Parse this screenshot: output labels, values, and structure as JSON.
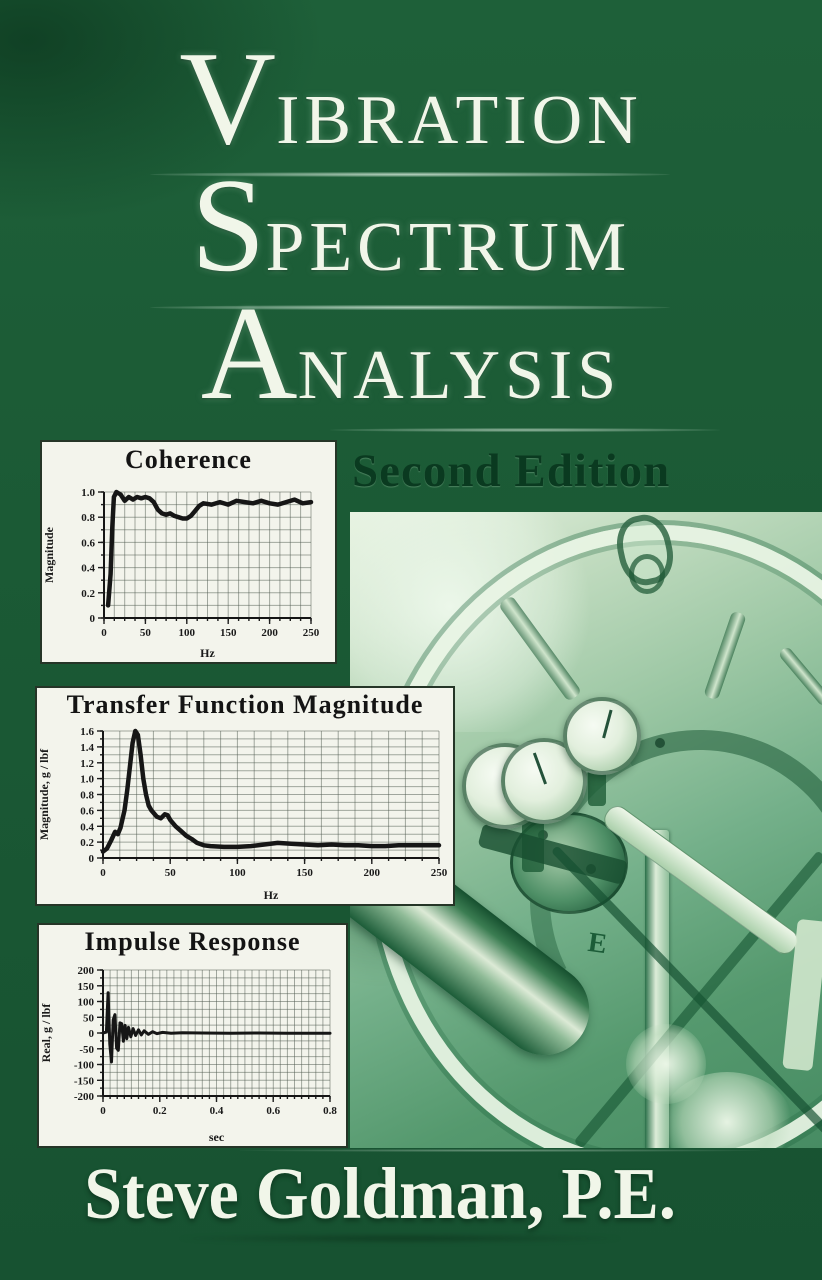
{
  "cover": {
    "title_lines": [
      {
        "initial": "V",
        "rest": "ibration"
      },
      {
        "initial": "S",
        "rest": "pectrum"
      },
      {
        "initial": "A",
        "rest": "nalysis"
      }
    ],
    "edition": "Second Edition",
    "author": "Steve Goldman, P.E.",
    "photo": {
      "stencil_label": "E"
    },
    "colors": {
      "background": "#1b5a35",
      "title_text": "#f1f6e9",
      "edition_text": "#0a3a20",
      "panel_bg": "#f3f4ec",
      "panel_border": "#253527",
      "chart_ink": "#171717",
      "grid": "#4d574d",
      "photo_light": "#e8f3e2",
      "photo_dark": "#478c63"
    }
  },
  "chart_data": [
    {
      "type": "line",
      "title": "Coherence",
      "xlabel": "Hz",
      "ylabel": "Magnitude",
      "xlim": [
        0,
        250
      ],
      "ylim": [
        0,
        1
      ],
      "xtick_vals": [
        0,
        50,
        100,
        150,
        200,
        250
      ],
      "xtick_labels": [
        "0",
        "50",
        "100",
        "150",
        "200",
        "250"
      ],
      "ytick_vals": [
        0,
        0.2,
        0.4,
        0.6,
        0.8,
        1.0
      ],
      "ytick_labels": [
        "0",
        "0.2",
        "0.4",
        "0.6",
        "0.8",
        "1.0"
      ],
      "grid_x_step": 12.5,
      "grid_y_step": 0.1,
      "line_color": "#161616",
      "line_width": 4.5,
      "points": [
        [
          5,
          0.1
        ],
        [
          8,
          0.35
        ],
        [
          10,
          0.72
        ],
        [
          12,
          0.96
        ],
        [
          15,
          1.0
        ],
        [
          20,
          0.98
        ],
        [
          25,
          0.93
        ],
        [
          30,
          0.96
        ],
        [
          35,
          0.94
        ],
        [
          40,
          0.96
        ],
        [
          45,
          0.95
        ],
        [
          50,
          0.96
        ],
        [
          55,
          0.95
        ],
        [
          60,
          0.92
        ],
        [
          65,
          0.86
        ],
        [
          70,
          0.83
        ],
        [
          75,
          0.82
        ],
        [
          80,
          0.83
        ],
        [
          85,
          0.81
        ],
        [
          90,
          0.8
        ],
        [
          95,
          0.79
        ],
        [
          100,
          0.79
        ],
        [
          105,
          0.81
        ],
        [
          110,
          0.85
        ],
        [
          115,
          0.89
        ],
        [
          120,
          0.91
        ],
        [
          130,
          0.9
        ],
        [
          140,
          0.92
        ],
        [
          150,
          0.9
        ],
        [
          160,
          0.93
        ],
        [
          170,
          0.92
        ],
        [
          180,
          0.91
        ],
        [
          190,
          0.93
        ],
        [
          200,
          0.91
        ],
        [
          210,
          0.9
        ],
        [
          220,
          0.92
        ],
        [
          230,
          0.94
        ],
        [
          240,
          0.91
        ],
        [
          250,
          0.92
        ]
      ],
      "layout": {
        "margins": {
          "l": 62,
          "r": 24,
          "t": 12,
          "b": 44
        },
        "grid": true,
        "legend": false
      }
    },
    {
      "type": "line",
      "title": "Transfer Function Magnitude",
      "xlabel": "Hz",
      "ylabel": "Magnitude, g / lbf",
      "xlim": [
        0,
        250
      ],
      "ylim": [
        0,
        1.6
      ],
      "xtick_vals": [
        0,
        50,
        100,
        150,
        200,
        250
      ],
      "xtick_labels": [
        "0",
        "50",
        "100",
        "150",
        "200",
        "250"
      ],
      "ytick_vals": [
        0,
        0.2,
        0.4,
        0.6,
        0.8,
        1.0,
        1.2,
        1.4,
        1.6
      ],
      "ytick_labels": [
        "0",
        "0.2",
        "0.4",
        "0.6",
        "0.8",
        "1.0",
        "1.2",
        "1.4",
        "1.6"
      ],
      "grid_x_step": 12.5,
      "grid_y_step": 0.1,
      "line_color": "#161616",
      "line_width": 4.5,
      "points": [
        [
          0,
          0.08
        ],
        [
          3,
          0.12
        ],
        [
          6,
          0.22
        ],
        [
          9,
          0.33
        ],
        [
          11,
          0.3
        ],
        [
          13,
          0.38
        ],
        [
          16,
          0.6
        ],
        [
          18,
          0.85
        ],
        [
          20,
          1.15
        ],
        [
          22,
          1.45
        ],
        [
          24,
          1.6
        ],
        [
          26,
          1.55
        ],
        [
          28,
          1.3
        ],
        [
          30,
          1.0
        ],
        [
          32,
          0.8
        ],
        [
          34,
          0.66
        ],
        [
          36,
          0.6
        ],
        [
          38,
          0.56
        ],
        [
          40,
          0.52
        ],
        [
          43,
          0.5
        ],
        [
          46,
          0.55
        ],
        [
          48,
          0.54
        ],
        [
          50,
          0.48
        ],
        [
          54,
          0.4
        ],
        [
          58,
          0.34
        ],
        [
          62,
          0.28
        ],
        [
          66,
          0.24
        ],
        [
          70,
          0.19
        ],
        [
          75,
          0.16
        ],
        [
          80,
          0.15
        ],
        [
          90,
          0.14
        ],
        [
          100,
          0.14
        ],
        [
          110,
          0.15
        ],
        [
          120,
          0.17
        ],
        [
          130,
          0.19
        ],
        [
          140,
          0.18
        ],
        [
          150,
          0.17
        ],
        [
          160,
          0.16
        ],
        [
          170,
          0.17
        ],
        [
          180,
          0.16
        ],
        [
          190,
          0.16
        ],
        [
          200,
          0.15
        ],
        [
          210,
          0.15
        ],
        [
          220,
          0.16
        ],
        [
          230,
          0.16
        ],
        [
          240,
          0.16
        ],
        [
          250,
          0.16
        ]
      ],
      "layout": {
        "margins": {
          "l": 66,
          "r": 14,
          "t": 8,
          "b": 46
        },
        "grid": true,
        "legend": false
      }
    },
    {
      "type": "line",
      "title": "Impulse Response",
      "xlabel": "sec",
      "ylabel": "Real, g / lbf",
      "xlim": [
        0,
        0.8
      ],
      "ylim": [
        -200,
        200
      ],
      "xtick_vals": [
        0,
        0.2,
        0.4,
        0.6,
        0.8
      ],
      "xtick_labels": [
        "0",
        "0.2",
        "0.4",
        "0.6",
        "0.8"
      ],
      "ytick_vals": [
        -200,
        -150,
        -100,
        -50,
        0,
        50,
        100,
        150,
        200
      ],
      "ytick_labels": [
        "-200",
        "-150",
        "-100",
        "-50",
        "0",
        "50",
        "100",
        "150",
        "200"
      ],
      "grid_x_step": 0.025,
      "grid_y_step": 25,
      "line_color": "#161616",
      "line_width": 3,
      "points": [
        [
          0,
          0
        ],
        [
          0.012,
          3
        ],
        [
          0.018,
          128
        ],
        [
          0.024,
          -35
        ],
        [
          0.03,
          -92
        ],
        [
          0.036,
          42
        ],
        [
          0.042,
          58
        ],
        [
          0.048,
          -48
        ],
        [
          0.054,
          -55
        ],
        [
          0.06,
          32
        ],
        [
          0.066,
          30
        ],
        [
          0.072,
          -26
        ],
        [
          0.078,
          24
        ],
        [
          0.084,
          -18
        ],
        [
          0.09,
          18
        ],
        [
          0.098,
          -12
        ],
        [
          0.106,
          14
        ],
        [
          0.115,
          -8
        ],
        [
          0.125,
          10
        ],
        [
          0.135,
          -6
        ],
        [
          0.145,
          7
        ],
        [
          0.16,
          -4
        ],
        [
          0.175,
          4
        ],
        [
          0.19,
          -2
        ],
        [
          0.21,
          2
        ],
        [
          0.24,
          -1
        ],
        [
          0.28,
          1
        ],
        [
          0.35,
          0
        ],
        [
          0.45,
          -1
        ],
        [
          0.55,
          0
        ],
        [
          0.65,
          -1
        ],
        [
          0.8,
          -1
        ]
      ],
      "layout": {
        "margins": {
          "l": 64,
          "r": 16,
          "t": 10,
          "b": 50
        },
        "grid": true,
        "legend": false
      }
    }
  ]
}
